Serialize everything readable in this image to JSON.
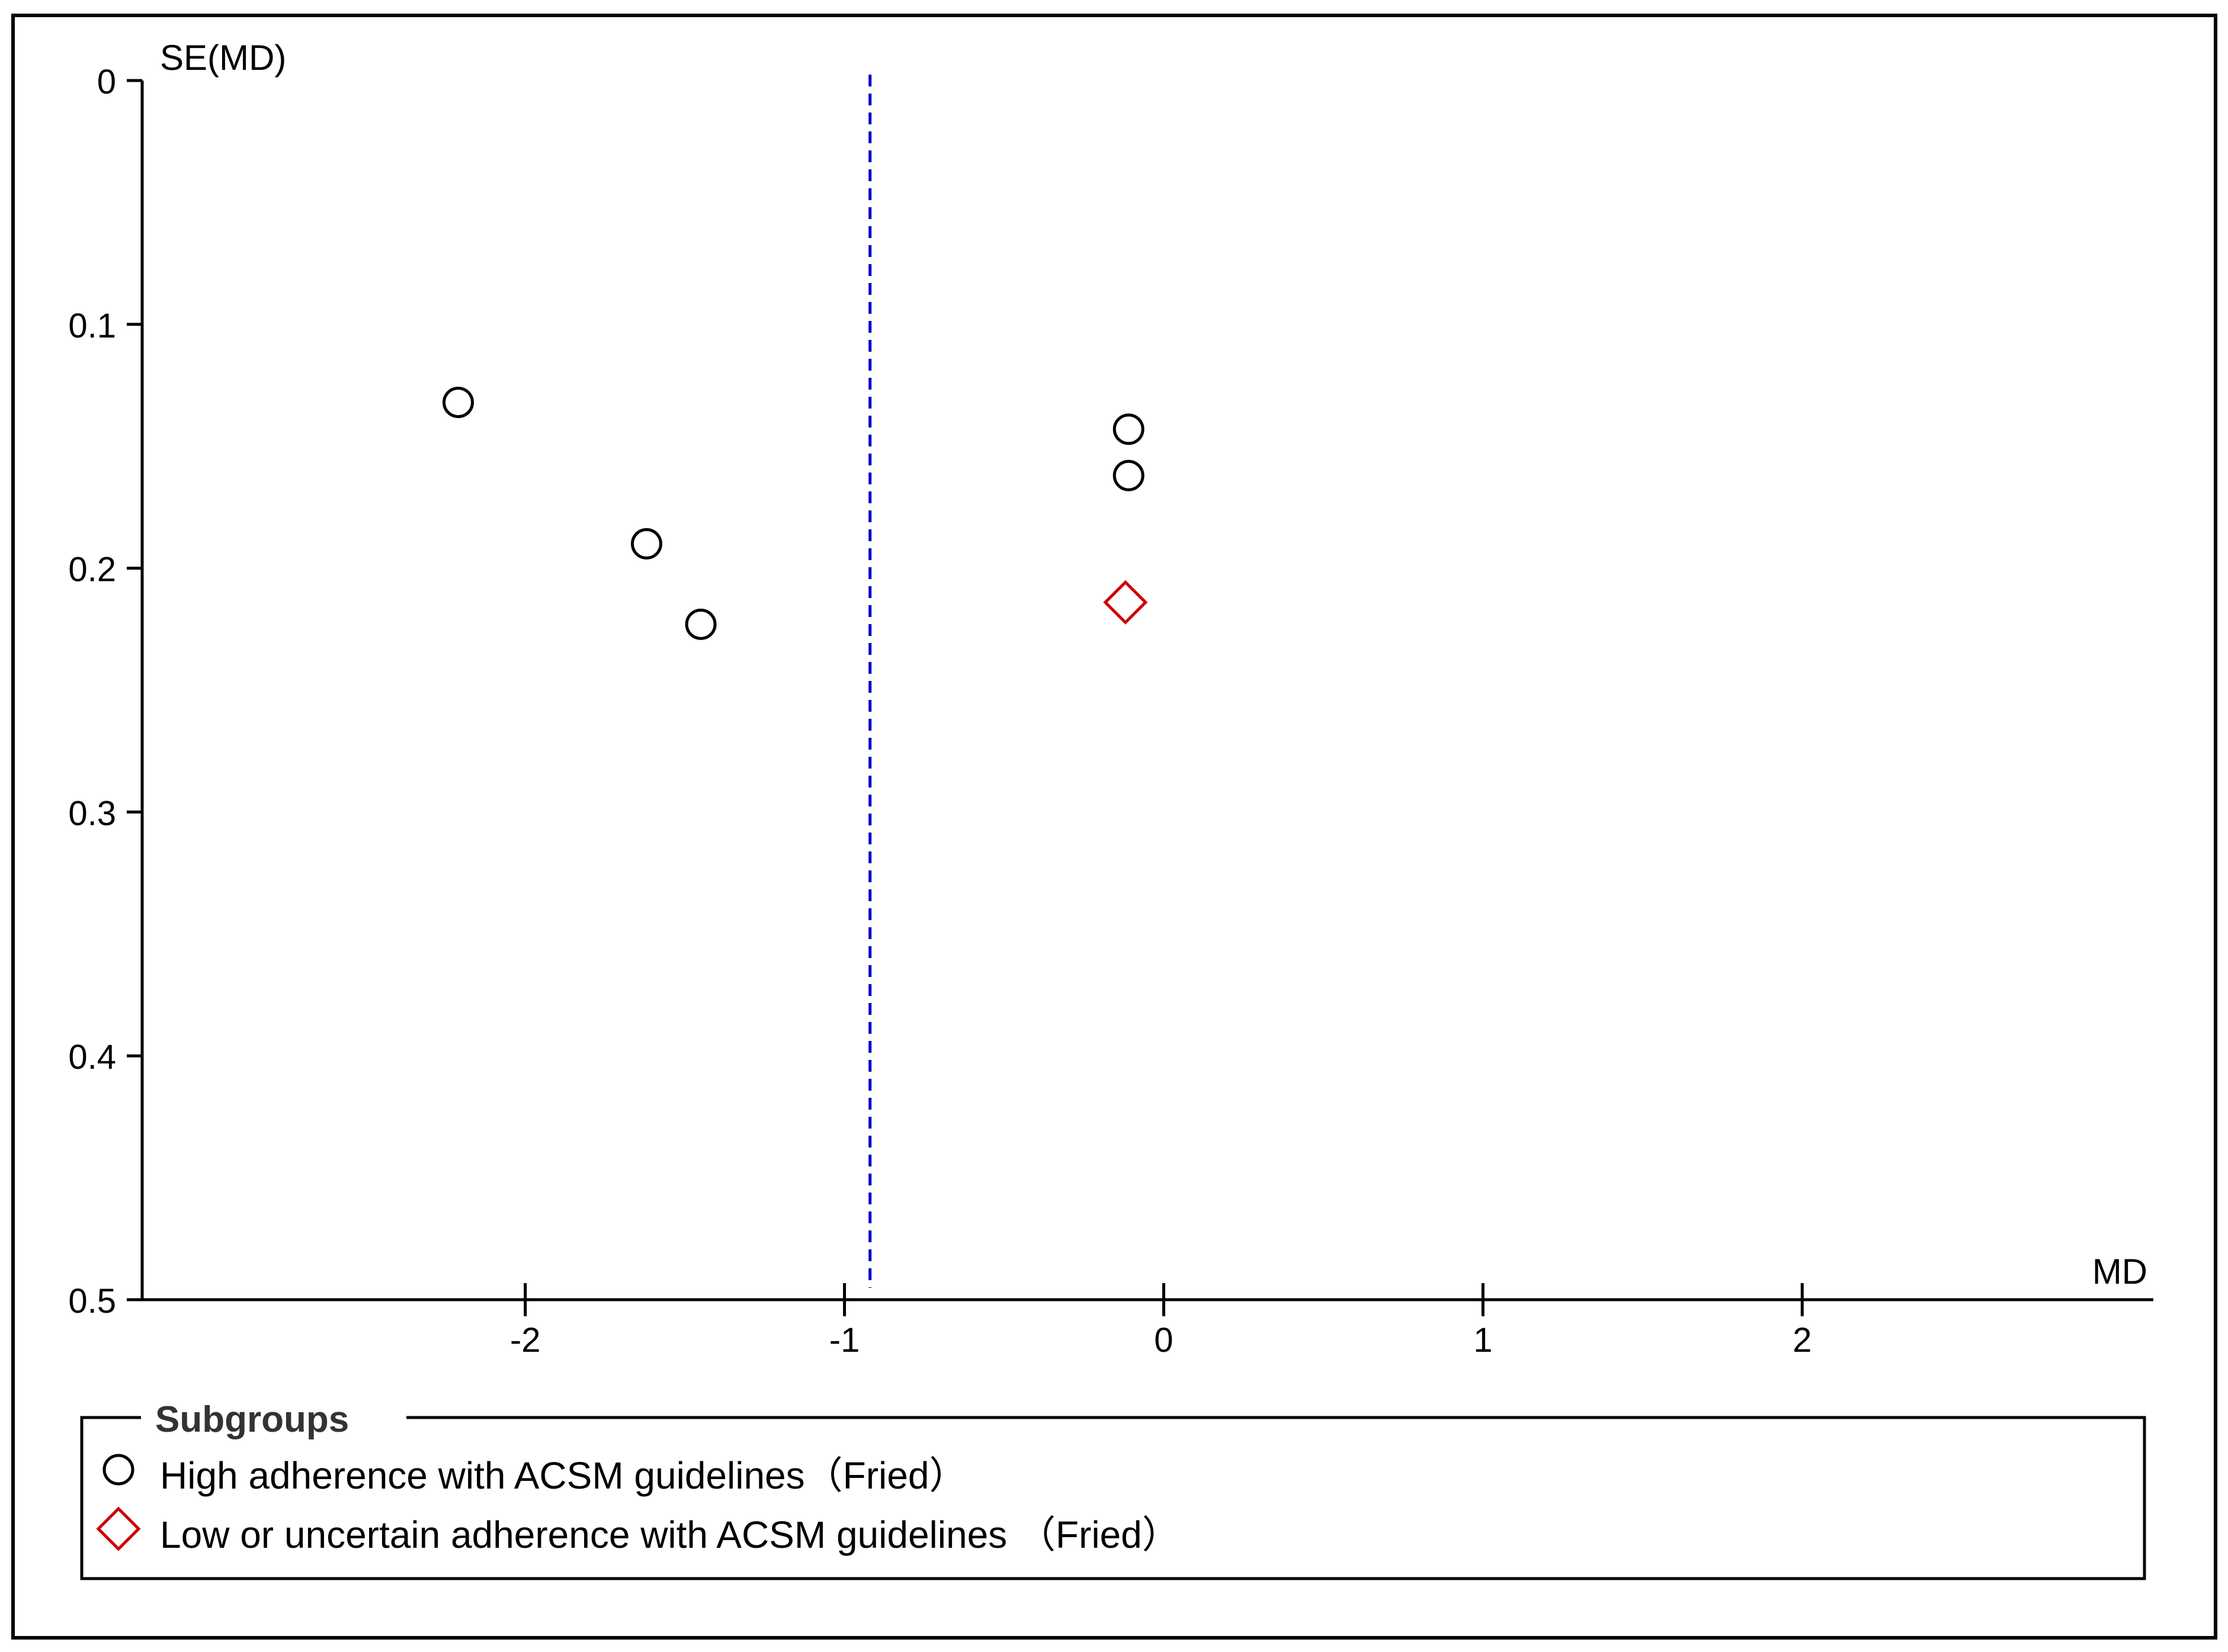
{
  "chart_data": {
    "type": "scatter",
    "title": "",
    "xlabel": "MD",
    "ylabel": "SE(MD)",
    "xlim": [
      -3.2,
      3.1
    ],
    "ylim": [
      0,
      0.5
    ],
    "y_inverted": true,
    "x_ticks": [
      "-2",
      "-1",
      "0",
      "1",
      "2"
    ],
    "x_tick_values": [
      -2,
      -1,
      0,
      1,
      2
    ],
    "y_ticks": [
      "0",
      "0.1",
      "0.2",
      "0.3",
      "0.4",
      "0.5"
    ],
    "y_tick_values": [
      0,
      0.1,
      0.2,
      0.3,
      0.4,
      0.5
    ],
    "reference_line": {
      "x": -0.92,
      "style": "dashed",
      "color": "#0000cc"
    },
    "grid": false,
    "legend_position": "bottom",
    "series": [
      {
        "name": "High adherence with ACSM guidelines（Fried）",
        "marker": "circle",
        "color": "#000000",
        "points": [
          {
            "x": -2.21,
            "y": 0.132
          },
          {
            "x": -1.62,
            "y": 0.19
          },
          {
            "x": -1.45,
            "y": 0.223
          },
          {
            "x": -0.11,
            "y": 0.143
          },
          {
            "x": -0.11,
            "y": 0.162
          }
        ]
      },
      {
        "name": "Low or uncertain adherence with ACSM guidelines （Fried）",
        "marker": "diamond",
        "color": "#cc0000",
        "points": [
          {
            "x": -0.12,
            "y": 0.214
          }
        ]
      }
    ]
  },
  "legend": {
    "title": "Subgroups"
  }
}
